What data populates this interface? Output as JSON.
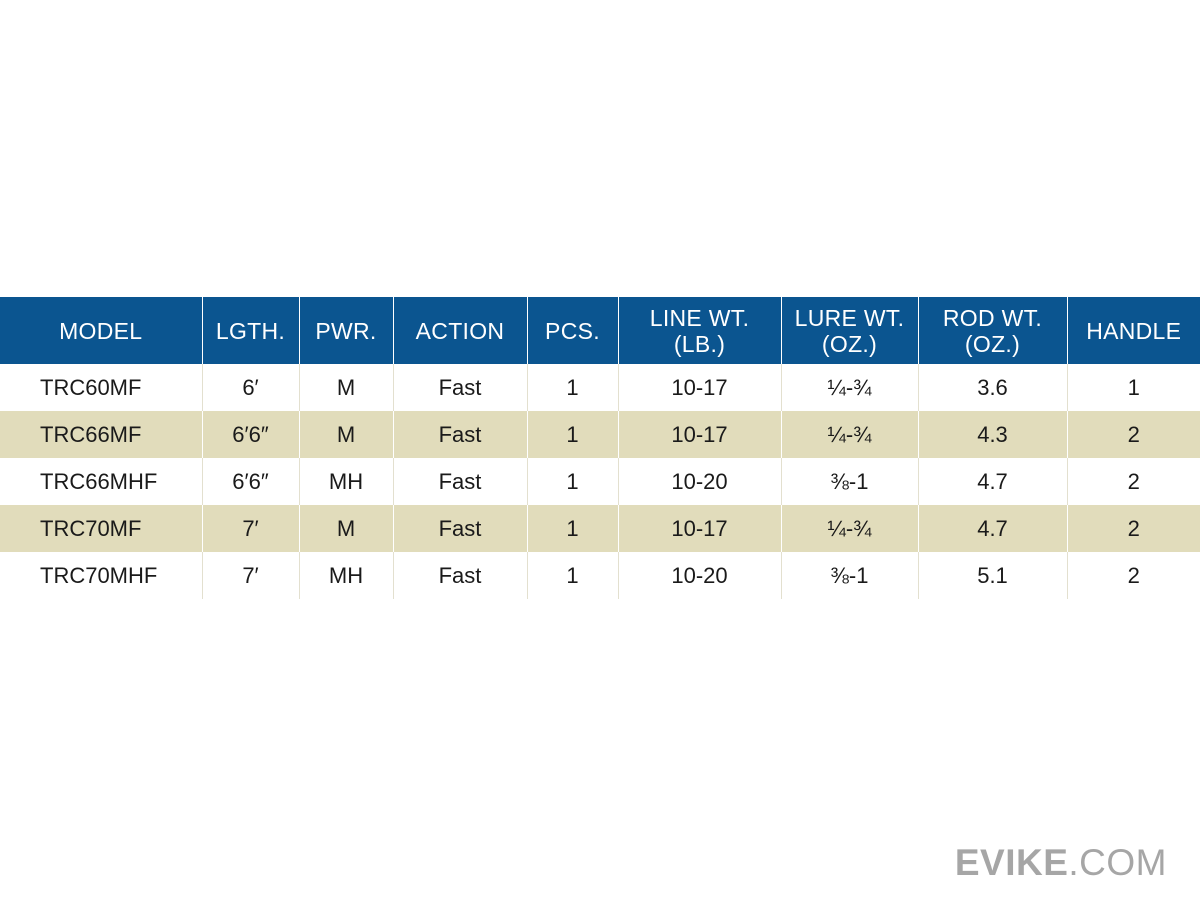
{
  "table": {
    "headers": [
      {
        "key": "model",
        "lines": [
          "MODEL"
        ]
      },
      {
        "key": "length",
        "lines": [
          "LGTH."
        ]
      },
      {
        "key": "power",
        "lines": [
          "PWR."
        ]
      },
      {
        "key": "action",
        "lines": [
          "ACTION"
        ]
      },
      {
        "key": "pieces",
        "lines": [
          "PCS."
        ]
      },
      {
        "key": "line_wt",
        "lines": [
          "LINE WT.",
          "(LB.)"
        ]
      },
      {
        "key": "lure_wt",
        "lines": [
          "LURE WT.",
          "(OZ.)"
        ]
      },
      {
        "key": "rod_wt",
        "lines": [
          "ROD WT.",
          "(OZ.)"
        ]
      },
      {
        "key": "handle",
        "lines": [
          "HANDLE"
        ]
      }
    ],
    "rows": [
      [
        "TRC60MF",
        "6′",
        "M",
        "Fast",
        "1",
        "10-17",
        "¼-¾",
        "3.6",
        "1"
      ],
      [
        "TRC66MF",
        "6′6″",
        "M",
        "Fast",
        "1",
        "10-17",
        "¼-¾",
        "4.3",
        "2"
      ],
      [
        "TRC66MHF",
        "6′6″",
        "MH",
        "Fast",
        "1",
        "10-20",
        "⅜-1",
        "4.7",
        "2"
      ],
      [
        "TRC70MF",
        "7′",
        "M",
        "Fast",
        "1",
        "10-17",
        "¼-¾",
        "4.7",
        "2"
      ],
      [
        "TRC70MHF",
        "7′",
        "MH",
        "Fast",
        "1",
        "10-20",
        "⅜-1",
        "5.1",
        "2"
      ]
    ]
  },
  "watermark": {
    "brand": "EVIKE",
    "suffix": ".COM"
  },
  "colors": {
    "header_bg": "#0b5590",
    "header_text": "#ffffff",
    "alt_row_bg": "#e1dcbb",
    "watermark": "#a6a6a6"
  }
}
